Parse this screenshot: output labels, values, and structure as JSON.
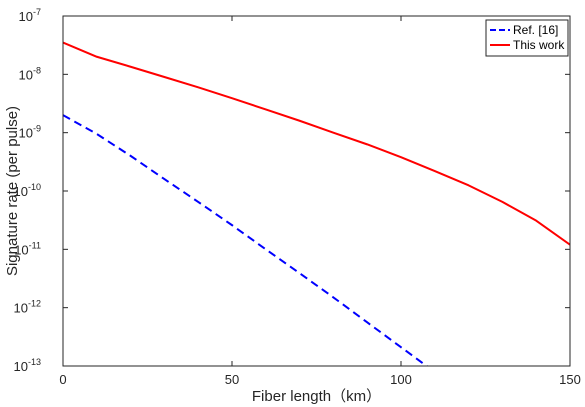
{
  "chart_data": {
    "type": "line",
    "xlabel": "Fiber length（km）",
    "ylabel": "Signature rate (per pulse)",
    "x_scale": "linear",
    "y_scale": "log",
    "xlim": [
      0,
      150
    ],
    "ylim": [
      1e-13,
      1e-07
    ],
    "grid": false,
    "legend_position": "top-right",
    "x_ticks": [
      {
        "value": 0,
        "label": "0"
      },
      {
        "value": 50,
        "label": "50"
      },
      {
        "value": 100,
        "label": "100"
      },
      {
        "value": 150,
        "label": "150"
      }
    ],
    "y_ticks": [
      {
        "value": 1e-13,
        "base": "10",
        "exp": "-13"
      },
      {
        "value": 1e-12,
        "base": "10",
        "exp": "-12"
      },
      {
        "value": 1e-11,
        "base": "10",
        "exp": "-11"
      },
      {
        "value": 1e-10,
        "base": "10",
        "exp": "-10"
      },
      {
        "value": 1e-09,
        "base": "10",
        "exp": "-9"
      },
      {
        "value": 1e-08,
        "base": "10",
        "exp": "-8"
      },
      {
        "value": 1e-07,
        "base": "10",
        "exp": "-7"
      }
    ],
    "series": [
      {
        "name": "Ref. [16]",
        "color": "#0000ff",
        "line_style": "dashed",
        "x": [
          0,
          10,
          20,
          30,
          40,
          50,
          60,
          70,
          80,
          90,
          100,
          110
        ],
        "y": [
          2e-09,
          9.5e-10,
          4e-10,
          1.6e-10,
          6.5e-11,
          2.6e-11,
          1e-11,
          3.9e-12,
          1.5e-12,
          5.6e-13,
          2.1e-13,
          7.9e-14
        ]
      },
      {
        "name": "This work",
        "color": "#ff0000",
        "line_style": "solid",
        "x": [
          0,
          10,
          20,
          30,
          40,
          50,
          60,
          70,
          80,
          90,
          100,
          110,
          120,
          130,
          140,
          150
        ],
        "y": [
          3.5e-08,
          2e-08,
          1.35e-08,
          9e-09,
          6e-09,
          3.9e-09,
          2.5e-09,
          1.6e-09,
          1e-09,
          6.3e-10,
          3.8e-10,
          2.2e-10,
          1.25e-10,
          6.5e-11,
          3.1e-11,
          1.2e-11
        ]
      }
    ]
  }
}
